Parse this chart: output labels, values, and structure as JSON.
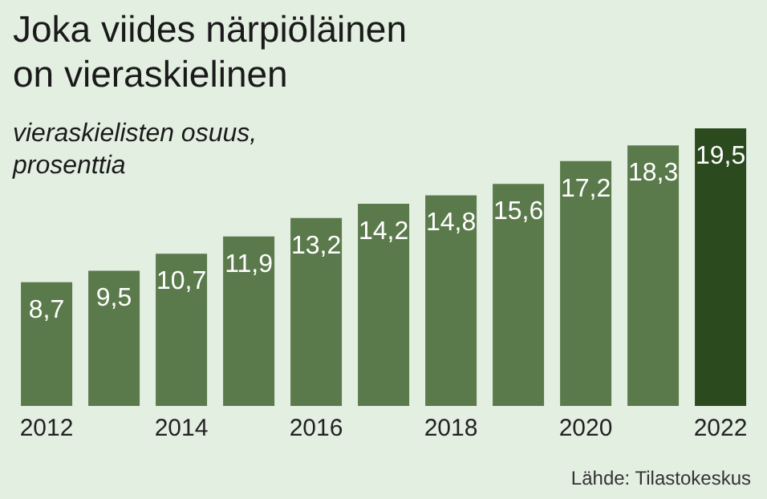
{
  "chart_data": {
    "type": "bar",
    "title": "Joka viides närpiöläinen\non vieraskielinen",
    "subtitle": "vieraskielisten osuus,\nprosenttia",
    "categories": [
      "2012",
      null,
      "2014",
      null,
      "2016",
      null,
      "2018",
      null,
      "2020",
      null,
      "2022"
    ],
    "values": [
      8.7,
      9.5,
      10.7,
      11.9,
      13.2,
      14.2,
      14.8,
      15.6,
      17.2,
      18.3,
      19.5
    ],
    "value_labels": [
      "8,7",
      "9,5",
      "10,7",
      "11,9",
      "13,2",
      "14,2",
      "14,8",
      "15,6",
      "17,2",
      "18,3",
      "19,5"
    ],
    "colors": [
      "#5b7a4c",
      "#5b7a4c",
      "#5b7a4c",
      "#5b7a4c",
      "#5b7a4c",
      "#5b7a4c",
      "#5b7a4c",
      "#5b7a4c",
      "#5b7a4c",
      "#5b7a4c",
      "#2b4a1e"
    ],
    "grid": false,
    "legend": false,
    "annotations": [
      "Lähde: Tilastokeskus"
    ]
  }
}
